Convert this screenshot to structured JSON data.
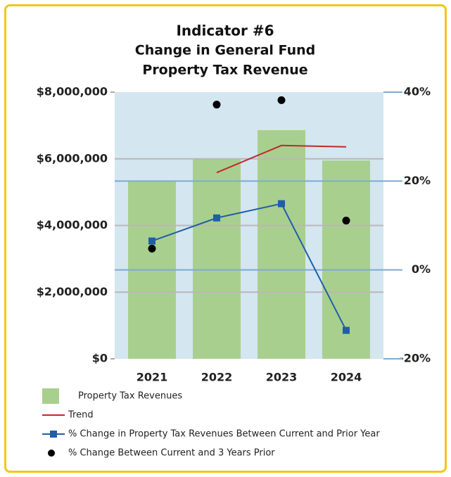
{
  "chart_data": {
    "type": "bar",
    "title": "Indicator #6",
    "subtitle": [
      "Change in General Fund",
      "Property Tax Revenue"
    ],
    "categories": [
      "2021",
      "2022",
      "2023",
      "2024"
    ],
    "ylim": [
      0,
      8000000
    ],
    "yticks": [
      {
        "value": 0,
        "label": "$0"
      },
      {
        "value": 2000000,
        "label": "$2,000,000"
      },
      {
        "value": 4000000,
        "label": "$4,000,000"
      },
      {
        "value": 6000000,
        "label": "$6,000,000"
      },
      {
        "value": 8000000,
        "label": "$8,000,000"
      }
    ],
    "y2lim": [
      -20,
      40
    ],
    "y2ticks": [
      {
        "value": -20,
        "label": "-20%"
      },
      {
        "value": 0,
        "label": "0%"
      },
      {
        "value": 20,
        "label": "20%"
      },
      {
        "value": 40,
        "label": "40%"
      }
    ],
    "grid": true,
    "series": [
      {
        "name": "Property Tax Revenues",
        "type": "bar",
        "color": "#a9cf8e",
        "values": [
          5320000,
          6000000,
          6860000,
          5950000
        ]
      },
      {
        "name": "Trend",
        "type": "line",
        "axis": "y2",
        "color": "#c0282d",
        "values": [
          null,
          21.9,
          28.0,
          27.7
        ]
      },
      {
        "name": "% Change in Property Tax Revenues Between Current and Prior Year",
        "type": "line",
        "marker": "square",
        "axis": "y2",
        "color": "#1f5fa6",
        "values": [
          6.5,
          11.7,
          14.9,
          -13.6
        ]
      },
      {
        "name": "% Change Between Current and 3 Years Prior",
        "type": "scatter",
        "axis": "y2",
        "color": "#000000",
        "values": [
          4.8,
          37.2,
          38.2,
          11.1
        ]
      }
    ]
  }
}
